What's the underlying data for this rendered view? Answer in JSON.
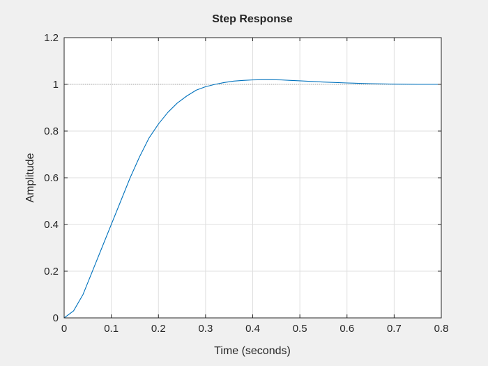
{
  "chart_data": {
    "type": "line",
    "title": "Step Response",
    "xlabel": "Time (seconds)",
    "ylabel": "Amplitude",
    "xlim": [
      0,
      0.8
    ],
    "ylim": [
      0,
      1.2
    ],
    "xticks": [
      0,
      0.1,
      0.2,
      0.3,
      0.4,
      0.5,
      0.6,
      0.7,
      0.8
    ],
    "xtick_labels": [
      "0",
      "0.1",
      "0.2",
      "0.3",
      "0.4",
      "0.5",
      "0.6",
      "0.7",
      "0.8"
    ],
    "yticks": [
      0,
      0.2,
      0.4,
      0.6,
      0.8,
      1.0,
      1.2
    ],
    "ytick_labels": [
      "0",
      "0.2",
      "0.4",
      "0.6",
      "0.8",
      "1",
      "1.2"
    ],
    "grid": true,
    "reference_line": {
      "y": 1.0,
      "style": "dotted"
    },
    "series": [
      {
        "color": "#0072bd",
        "x": [
          0,
          0.02,
          0.04,
          0.06,
          0.08,
          0.1,
          0.12,
          0.14,
          0.16,
          0.18,
          0.2,
          0.22,
          0.24,
          0.26,
          0.28,
          0.3,
          0.32,
          0.34,
          0.36,
          0.38,
          0.4,
          0.42,
          0.44,
          0.46,
          0.48,
          0.5,
          0.55,
          0.6,
          0.65,
          0.7,
          0.75,
          0.8
        ],
        "y": [
          0,
          0.03,
          0.1,
          0.2,
          0.3,
          0.4,
          0.5,
          0.6,
          0.69,
          0.77,
          0.83,
          0.88,
          0.92,
          0.95,
          0.975,
          0.99,
          1.0,
          1.008,
          1.014,
          1.017,
          1.019,
          1.02,
          1.02,
          1.019,
          1.017,
          1.015,
          1.01,
          1.006,
          1.003,
          1.001,
          1.0,
          1.0
        ]
      }
    ],
    "colors": {
      "background": "#f0f0f0",
      "axes_background": "#ffffff",
      "grid": "#dfdfdf",
      "axis": "#262626",
      "text": "#262626"
    }
  }
}
